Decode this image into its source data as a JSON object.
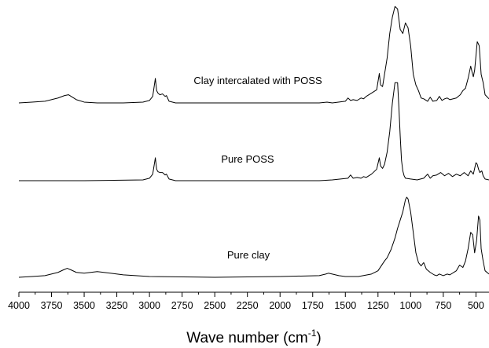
{
  "chart_data": {
    "type": "line",
    "title": "",
    "xlabel_main": "Wave number (cm",
    "xlabel_sup": "-1",
    "xlabel_close": ")",
    "ylabel": "",
    "xlim": [
      4000,
      400
    ],
    "x_reversed": true,
    "grid": false,
    "legend": "none",
    "x_ticks": [
      4000,
      3750,
      3500,
      3250,
      3000,
      2750,
      2500,
      2250,
      2000,
      1750,
      1500,
      1250,
      1000,
      750,
      500
    ],
    "x_tick_labels": [
      "4000",
      "3750",
      "3500",
      "3250",
      "3000",
      "2750",
      "2500",
      "2250",
      "2000",
      "1750",
      "1500",
      "1250",
      "1000",
      "750",
      "500"
    ],
    "line_color": "#000000",
    "series": [
      {
        "label": "Clay intercalated with POSS",
        "x": [
          4000,
          3900,
          3800,
          3700,
          3650,
          3620,
          3600,
          3560,
          3500,
          3400,
          3200,
          3050,
          3000,
          2975,
          2955,
          2945,
          2935,
          2920,
          2900,
          2880,
          2870,
          2850,
          2800,
          2500,
          2000,
          1700,
          1640,
          1600,
          1500,
          1480,
          1460,
          1440,
          1410,
          1380,
          1360,
          1340,
          1300,
          1260,
          1240,
          1230,
          1215,
          1200,
          1180,
          1160,
          1140,
          1120,
          1100,
          1080,
          1060,
          1040,
          1020,
          1000,
          980,
          960,
          940,
          920,
          900,
          870,
          850,
          830,
          800,
          780,
          760,
          740,
          720,
          700,
          650,
          620,
          600,
          580,
          560,
          540,
          530,
          520,
          510,
          490,
          475,
          460,
          445,
          430,
          400
        ],
        "y": [
          0.0,
          0.01,
          0.02,
          0.06,
          0.09,
          0.1,
          0.08,
          0.04,
          0.01,
          0.0,
          0.0,
          0.01,
          0.03,
          0.08,
          0.3,
          0.15,
          0.12,
          0.1,
          0.11,
          0.08,
          0.09,
          0.02,
          0.0,
          0.0,
          0.0,
          0.0,
          0.01,
          0.0,
          0.02,
          0.06,
          0.03,
          0.04,
          0.03,
          0.06,
          0.05,
          0.08,
          0.12,
          0.16,
          0.36,
          0.22,
          0.2,
          0.35,
          0.55,
          0.85,
          1.05,
          1.18,
          1.15,
          0.9,
          0.85,
          0.98,
          0.92,
          0.7,
          0.35,
          0.22,
          0.15,
          0.06,
          0.05,
          0.02,
          0.07,
          0.02,
          0.03,
          0.08,
          0.03,
          0.05,
          0.06,
          0.04,
          0.06,
          0.1,
          0.15,
          0.18,
          0.3,
          0.45,
          0.38,
          0.32,
          0.4,
          0.75,
          0.7,
          0.35,
          0.25,
          0.1,
          0.05
        ]
      },
      {
        "label": "Pure POSS",
        "x": [
          4000,
          3500,
          3050,
          3000,
          2975,
          2955,
          2945,
          2935,
          2920,
          2900,
          2880,
          2870,
          2850,
          2800,
          2500,
          2000,
          1700,
          1600,
          1480,
          1460,
          1440,
          1410,
          1380,
          1360,
          1340,
          1300,
          1260,
          1240,
          1230,
          1215,
          1200,
          1180,
          1160,
          1140,
          1120,
          1100,
          1090,
          1080,
          1070,
          1060,
          1050,
          1040,
          1000,
          950,
          900,
          870,
          850,
          830,
          800,
          770,
          740,
          710,
          680,
          650,
          620,
          590,
          560,
          540,
          520,
          500,
          490,
          480,
          470,
          455,
          445,
          430,
          400
        ],
        "y": [
          0.0,
          0.0,
          0.01,
          0.03,
          0.08,
          0.28,
          0.14,
          0.11,
          0.1,
          0.1,
          0.07,
          0.08,
          0.02,
          0.0,
          0.0,
          0.0,
          0.0,
          0.01,
          0.03,
          0.07,
          0.03,
          0.04,
          0.03,
          0.05,
          0.04,
          0.08,
          0.14,
          0.28,
          0.18,
          0.15,
          0.2,
          0.35,
          0.6,
          0.95,
          1.2,
          1.2,
          0.9,
          0.55,
          0.25,
          0.12,
          0.06,
          0.03,
          0.02,
          0.01,
          0.03,
          0.08,
          0.03,
          0.06,
          0.07,
          0.1,
          0.06,
          0.09,
          0.05,
          0.08,
          0.06,
          0.1,
          0.06,
          0.12,
          0.08,
          0.22,
          0.2,
          0.14,
          0.1,
          0.12,
          0.06,
          0.02,
          0.01
        ]
      },
      {
        "label": "Pure clay",
        "x": [
          4000,
          3900,
          3800,
          3700,
          3660,
          3630,
          3600,
          3560,
          3500,
          3450,
          3400,
          3350,
          3300,
          3200,
          3000,
          2500,
          2000,
          1700,
          1650,
          1630,
          1600,
          1550,
          1500,
          1400,
          1300,
          1250,
          1200,
          1180,
          1150,
          1120,
          1100,
          1080,
          1060,
          1040,
          1030,
          1020,
          1000,
          980,
          960,
          940,
          920,
          900,
          880,
          850,
          820,
          800,
          780,
          750,
          720,
          700,
          650,
          625,
          600,
          580,
          560,
          540,
          525,
          510,
          495,
          480,
          470,
          460,
          445,
          430,
          400
        ],
        "y": [
          0.0,
          0.01,
          0.02,
          0.06,
          0.09,
          0.11,
          0.09,
          0.06,
          0.05,
          0.06,
          0.07,
          0.06,
          0.05,
          0.03,
          0.01,
          0.0,
          0.01,
          0.02,
          0.04,
          0.05,
          0.04,
          0.02,
          0.01,
          0.01,
          0.04,
          0.08,
          0.2,
          0.24,
          0.34,
          0.48,
          0.6,
          0.7,
          0.8,
          0.95,
          0.98,
          0.96,
          0.8,
          0.55,
          0.3,
          0.18,
          0.14,
          0.18,
          0.1,
          0.06,
          0.03,
          0.02,
          0.04,
          0.02,
          0.04,
          0.03,
          0.08,
          0.15,
          0.12,
          0.2,
          0.35,
          0.55,
          0.52,
          0.3,
          0.45,
          0.75,
          0.7,
          0.35,
          0.2,
          0.08,
          0.04
        ]
      }
    ]
  }
}
